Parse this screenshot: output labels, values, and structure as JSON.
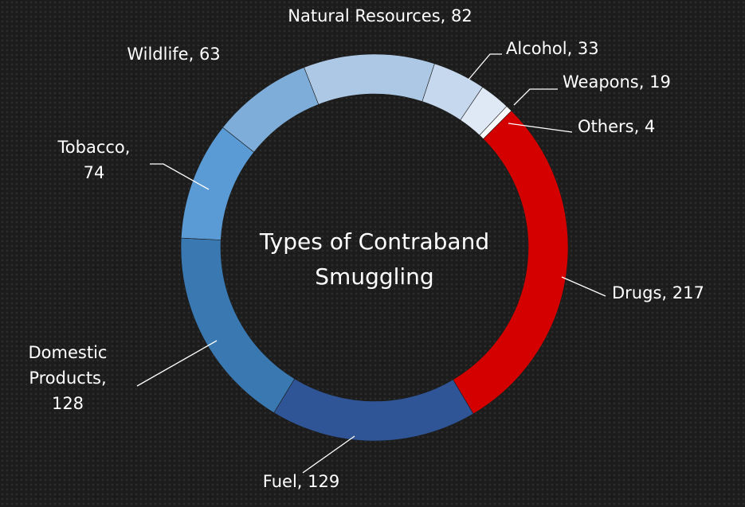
{
  "chart_data": {
    "type": "donut",
    "title": "Types of Contraband Smuggling",
    "values": [
      217,
      129,
      128,
      74,
      63,
      82,
      33,
      19,
      4
    ],
    "value_labels": [
      [
        "Drugs, 217"
      ],
      [
        "Fuel, 129"
      ],
      [
        "Domestic",
        "Products,",
        "128"
      ],
      [
        "Tobacco,",
        "74"
      ],
      [
        "Wildlife,  63"
      ],
      [
        "Natural Resources, 82"
      ],
      [
        "Alcohol,  33"
      ],
      [
        "Weapons, 19"
      ],
      [
        "Others, 4"
      ]
    ],
    "colors": [
      "#d40000",
      "#2f5597",
      "#3a78b1",
      "#5b9bd5",
      "#7dadd8",
      "#adc8e4",
      "#c5d8ed",
      "#dfe9f5",
      "#f7f9fc"
    ]
  }
}
